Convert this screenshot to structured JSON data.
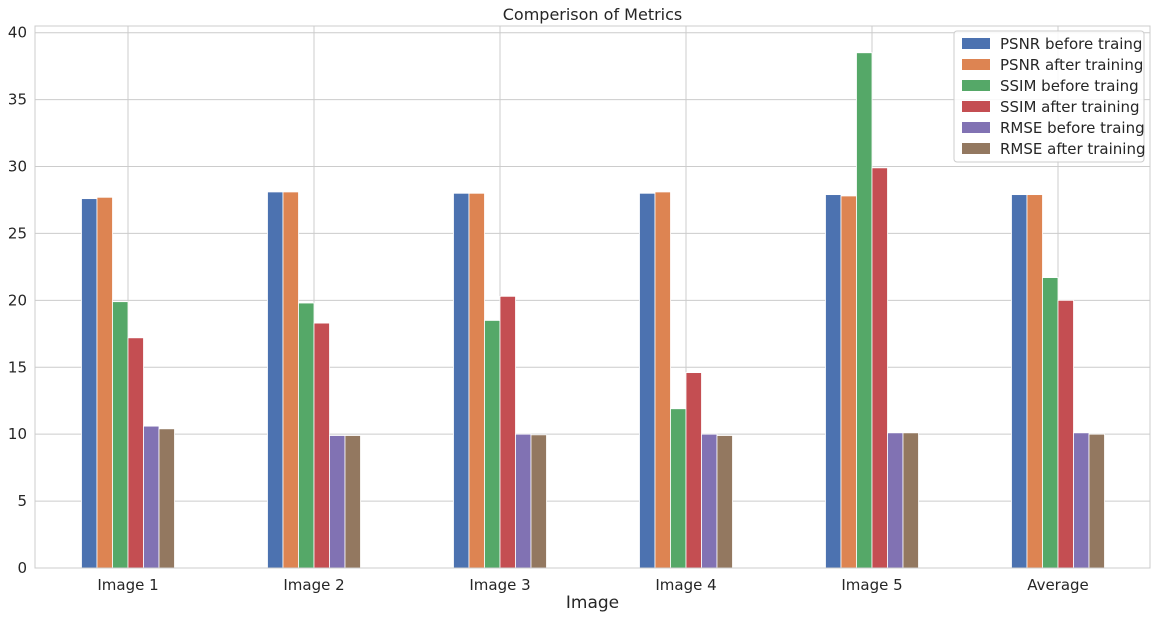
{
  "chart_data": {
    "type": "bar",
    "title": "Comperison of Metrics",
    "xlabel": "Image",
    "ylabel": "",
    "ylim": [
      0,
      40.5
    ],
    "yticks": [
      0,
      5,
      10,
      15,
      20,
      25,
      30,
      35,
      40
    ],
    "grid": true,
    "legend_position": "top-right",
    "categories": [
      "Image 1",
      "Image 2",
      "Image 3",
      "Image 4",
      "Image 5",
      "Average"
    ],
    "series": [
      {
        "name": "PSNR before traing",
        "color": "#4c72b0",
        "values": [
          27.6,
          28.1,
          28.0,
          28.0,
          27.9,
          27.9
        ]
      },
      {
        "name": "PSNR after training",
        "color": "#dd8452",
        "values": [
          27.7,
          28.1,
          28.0,
          28.1,
          27.8,
          27.9
        ]
      },
      {
        "name": "SSIM before traing",
        "color": "#55a868",
        "values": [
          19.9,
          19.8,
          18.5,
          11.9,
          38.5,
          21.7
        ]
      },
      {
        "name": "SSIM after training",
        "color": "#c44e52",
        "values": [
          17.2,
          18.3,
          20.3,
          14.6,
          29.9,
          20.0
        ]
      },
      {
        "name": "RMSE before traing",
        "color": "#8172b3",
        "values": [
          10.6,
          9.9,
          10.0,
          10.0,
          10.1,
          10.1
        ]
      },
      {
        "name": "RMSE after training",
        "color": "#937860",
        "values": [
          10.4,
          9.9,
          9.95,
          9.9,
          10.1,
          10.0
        ]
      }
    ]
  }
}
